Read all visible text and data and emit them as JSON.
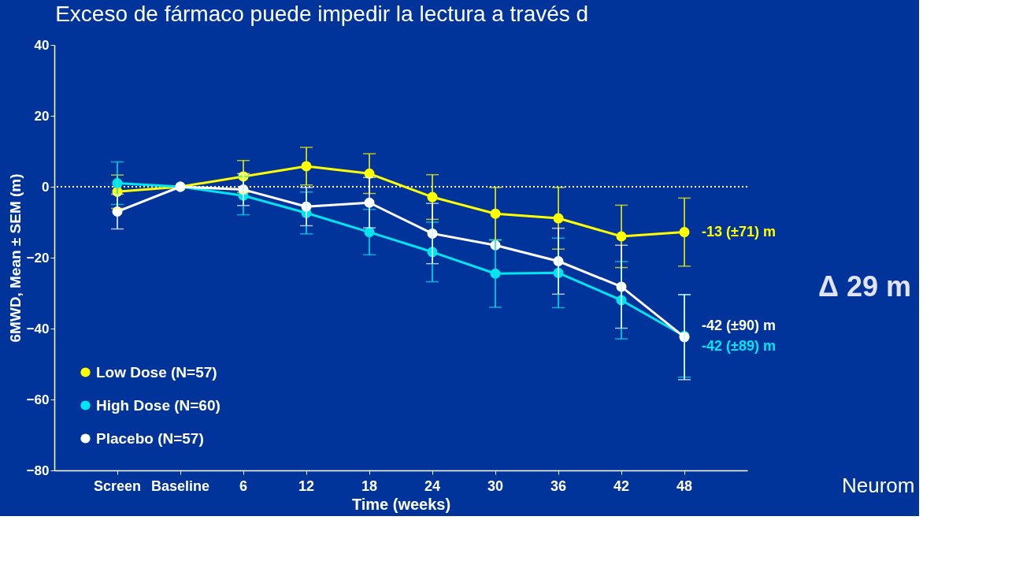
{
  "chart_data": {
    "type": "line",
    "title": "Exceso de fármaco puede impedir la lectura a través d",
    "xlabel": "Time (weeks)",
    "ylabel": "6MWD, Mean ± SEM (m)",
    "categories": [
      "Screen",
      "Baseline",
      "6",
      "12",
      "18",
      "24",
      "30",
      "36",
      "42",
      "48"
    ],
    "ylim": [
      -80,
      40
    ],
    "yticks": [
      -80,
      -60,
      -40,
      -20,
      0,
      20,
      40
    ],
    "grid": false,
    "legend": "bottom left",
    "marker": "circle",
    "line_style": "solid",
    "series": [
      {
        "name": "Low Dose (N=57)",
        "color": "#ffff00",
        "values": [
          -1.4,
          0,
          2.9,
          5.8,
          3.7,
          -2.9,
          -7.6,
          -8.9,
          -14,
          -12.8
        ],
        "errors": [
          4.7,
          null,
          4.5,
          5.3,
          5.6,
          6.3,
          7.4,
          8.7,
          8.8,
          9.6
        ],
        "value_labels": [
          null,
          null,
          null,
          null,
          null,
          null,
          null,
          null,
          null,
          "-13 (±71) m"
        ]
      },
      {
        "name": "High Dose (N=60)",
        "color": "#00e5ee",
        "values": [
          1.0,
          0,
          -2.5,
          -7.4,
          -12.8,
          -18.4,
          -24.5,
          -24.3,
          -32,
          -42.1
        ],
        "errors": [
          6,
          null,
          5.4,
          5.9,
          6.4,
          8.4,
          9.5,
          9.8,
          10.9,
          11.6
        ],
        "value_labels": [
          null,
          null,
          null,
          null,
          null,
          null,
          null,
          null,
          null,
          "-42 (±89) m"
        ]
      },
      {
        "name": "Placebo (N=57)",
        "color": "#ffffff",
        "values": [
          -7.0,
          0,
          -0.8,
          -5.6,
          -4.5,
          -13.2,
          -16.5,
          -21,
          -28.2,
          -42.4
        ],
        "errors": [
          4.9,
          null,
          4.5,
          5.4,
          7.1,
          8.5,
          null,
          9.3,
          11.7,
          12
        ],
        "value_labels": [
          null,
          null,
          null,
          null,
          null,
          null,
          null,
          null,
          null,
          "-42 (±90) m"
        ]
      }
    ],
    "ref_lines": [
      {
        "axis": "y",
        "value": 0,
        "color": "#ffffff",
        "line_style": "dotted"
      }
    ],
    "annotations": [
      "Δ 29 m",
      "Neurom"
    ]
  }
}
